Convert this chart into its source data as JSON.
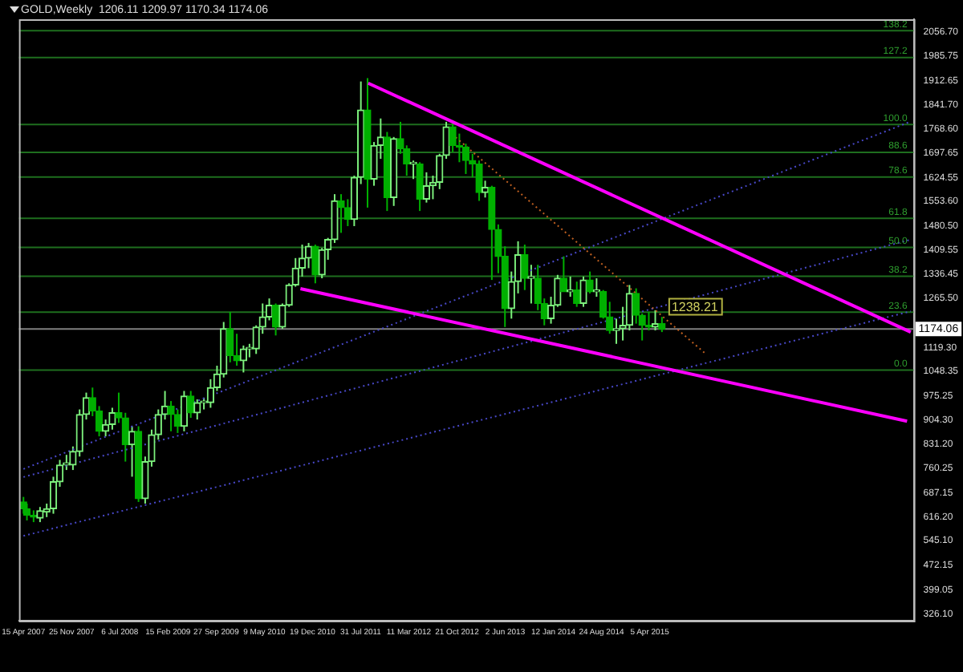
{
  "chart_data": {
    "type": "candlestick",
    "title": "GOLD,Weekly  1206.11 1209.97 1170.34 1174.06",
    "colors": [
      "#00b000",
      "#00b000",
      "#00b000",
      "#7cf07c",
      "#7cf07c",
      "#7cf07c",
      "#7cf07c",
      "#7cf07c",
      "#7cf07c",
      "#7cf07c",
      "#7cf07c",
      "#00b000",
      "#00b000",
      "#7cf07c",
      "#7cf07c",
      "#00b000",
      "#00b000",
      "#7cf07c",
      "#00b000",
      "#7cf07c",
      "#7cf07c",
      "#7cf07c",
      "#7cf07c",
      "#00b000",
      "#00b000",
      "#7cf07c",
      "#00b000",
      "#7cf07c",
      "#7cf07c",
      "#7cf07c",
      "#7cf07c",
      "#7cf07c",
      "#00b000",
      "#00b000",
      "#7cf07c",
      "#7cf07c",
      "#7cf07c",
      "#7cf07c",
      "#7cf07c",
      "#00b000",
      "#7cf07c",
      "#7cf07c",
      "#7cf07c",
      "#7cf07c",
      "#7cf07c",
      "#00b000",
      "#7cf07c",
      "#7cf07c",
      "#7cf07c",
      "#00b000",
      "#00b000",
      "#7cf07c",
      "#7cf07c",
      "#00b000",
      "#7cf07c",
      "#7cf07c",
      "#00b000",
      "#7cf07c",
      "#00b000",
      "#00b000",
      "#7cf07c",
      "#00b000",
      "#7cf07c",
      "#7cf07c",
      "#7cf07c",
      "#7cf07c",
      "#00b000",
      "#00b000",
      "#00b000",
      "#00b000",
      "#00b000",
      "#7cf07c",
      "#00b000",
      "#00b000",
      "#00b000",
      "#7cf07c",
      "#7cf07c",
      "#00b000",
      "#7cf07c",
      "#00b000",
      "#00b000",
      "#7cf07c",
      "#7cf07c",
      "#00b000",
      "#7cf07c",
      "#00b000",
      "#7cf07c",
      "#00b000",
      "#7cf07c",
      "#00b000",
      "#00b000",
      "#7cf07c",
      "#7cf07c",
      "#7cf07c",
      "#00b000",
      "#00b000",
      "#00b000",
      "#7cf07c",
      "#00b000"
    ],
    "legend": false,
    "grid": false,
    "x": [
      "2007-04-15",
      "2007-05",
      "2007-06",
      "2007-07",
      "2007-08",
      "2007-09",
      "2007-10",
      "2007-11",
      "2007-12",
      "2008-01",
      "2008-02",
      "2008-03",
      "2008-04",
      "2008-05",
      "2008-06",
      "2008-07",
      "2008-08",
      "2008-09",
      "2008-10",
      "2008-11",
      "2008-12",
      "2009-01",
      "2009-02",
      "2009-03",
      "2009-04",
      "2009-05",
      "2009-06",
      "2009-07",
      "2009-08",
      "2009-09",
      "2009-10",
      "2009-11",
      "2009-12",
      "2010-01",
      "2010-02",
      "2010-03",
      "2010-04",
      "2010-05",
      "2010-06",
      "2010-07",
      "2010-08",
      "2010-09",
      "2010-10",
      "2010-11",
      "2010-12",
      "2011-01",
      "2011-02",
      "2011-03",
      "2011-04",
      "2011-05",
      "2011-06",
      "2011-07",
      "2011-08",
      "2011-09",
      "2011-10",
      "2011-11",
      "2011-12",
      "2012-01",
      "2012-02",
      "2012-03",
      "2012-04",
      "2012-05",
      "2012-06",
      "2012-07",
      "2012-08",
      "2012-09",
      "2012-10",
      "2012-11",
      "2012-12",
      "2013-01",
      "2013-02",
      "2013-03",
      "2013-04",
      "2013-05",
      "2013-06",
      "2013-07",
      "2013-08",
      "2013-09",
      "2013-10",
      "2013-11",
      "2013-12",
      "2014-01",
      "2014-02",
      "2014-03",
      "2014-04",
      "2014-05",
      "2014-06",
      "2014-07",
      "2014-08",
      "2014-09",
      "2014-10",
      "2014-11",
      "2014-12",
      "2015-01",
      "2015-02",
      "2015-03",
      "2015-04",
      "2015-05",
      "2015-06"
    ],
    "ohlc": [
      [
        660,
        675,
        625,
        640
      ],
      [
        640,
        655,
        605,
        620
      ],
      [
        620,
        635,
        600,
        615
      ],
      [
        612,
        645,
        600,
        634
      ],
      [
        630,
        655,
        615,
        640
      ],
      [
        640,
        735,
        625,
        720
      ],
      [
        720,
        785,
        705,
        770
      ],
      [
        770,
        800,
        755,
        776
      ],
      [
        770,
        825,
        755,
        810
      ],
      [
        810,
        935,
        795,
        920
      ],
      [
        920,
        985,
        905,
        970
      ],
      [
        970,
        1000,
        915,
        930
      ],
      [
        930,
        945,
        855,
        870
      ],
      [
        870,
        905,
        855,
        890
      ],
      [
        890,
        940,
        875,
        925
      ],
      [
        925,
        985,
        895,
        910
      ],
      [
        910,
        925,
        780,
        830
      ],
      [
        830,
        885,
        735,
        870
      ],
      [
        870,
        885,
        660,
        670
      ],
      [
        670,
        795,
        655,
        780
      ],
      [
        780,
        875,
        765,
        860
      ],
      [
        860,
        935,
        845,
        920
      ],
      [
        920,
        990,
        905,
        945
      ],
      [
        945,
        960,
        870,
        920
      ],
      [
        920,
        935,
        865,
        885
      ],
      [
        885,
        990,
        870,
        975
      ],
      [
        975,
        990,
        910,
        925
      ],
      [
        925,
        965,
        905,
        955
      ],
      [
        955,
        970,
        935,
        955
      ],
      [
        955,
        1025,
        940,
        1000
      ],
      [
        1000,
        1065,
        990,
        1040
      ],
      [
        1040,
        1195,
        1030,
        1175
      ],
      [
        1175,
        1225,
        1075,
        1095
      ],
      [
        1095,
        1160,
        1065,
        1080
      ],
      [
        1080,
        1125,
        1045,
        1115
      ],
      [
        1115,
        1130,
        1090,
        1115
      ],
      [
        1115,
        1185,
        1100,
        1180
      ],
      [
        1180,
        1250,
        1160,
        1210
      ],
      [
        1210,
        1265,
        1200,
        1245
      ],
      [
        1245,
        1250,
        1155,
        1180
      ],
      [
        1180,
        1250,
        1175,
        1245
      ],
      [
        1245,
        1310,
        1240,
        1305
      ],
      [
        1305,
        1385,
        1300,
        1355
      ],
      [
        1355,
        1425,
        1330,
        1385
      ],
      [
        1385,
        1430,
        1355,
        1420
      ],
      [
        1420,
        1425,
        1310,
        1335
      ],
      [
        1335,
        1415,
        1325,
        1410
      ],
      [
        1410,
        1445,
        1380,
        1440
      ],
      [
        1440,
        1575,
        1430,
        1555
      ],
      [
        1555,
        1575,
        1460,
        1535
      ],
      [
        1535,
        1560,
        1480,
        1500
      ],
      [
        1500,
        1630,
        1480,
        1625
      ],
      [
        1625,
        1910,
        1605,
        1825
      ],
      [
        1825,
        1920,
        1535,
        1620
      ],
      [
        1620,
        1730,
        1600,
        1720
      ],
      [
        1720,
        1800,
        1680,
        1745
      ],
      [
        1745,
        1760,
        1525,
        1565
      ],
      [
        1565,
        1745,
        1540,
        1740
      ],
      [
        1740,
        1790,
        1695,
        1710
      ],
      [
        1710,
        1720,
        1630,
        1665
      ],
      [
        1665,
        1675,
        1620,
        1665
      ],
      [
        1665,
        1670,
        1525,
        1560
      ],
      [
        1560,
        1640,
        1550,
        1600
      ],
      [
        1600,
        1630,
        1560,
        1610
      ],
      [
        1610,
        1695,
        1590,
        1690
      ],
      [
        1690,
        1790,
        1680,
        1775
      ],
      [
        1775,
        1795,
        1700,
        1720
      ],
      [
        1720,
        1755,
        1670,
        1715
      ],
      [
        1715,
        1725,
        1635,
        1675
      ],
      [
        1675,
        1695,
        1625,
        1665
      ],
      [
        1665,
        1675,
        1555,
        1580
      ],
      [
        1580,
        1615,
        1565,
        1595
      ],
      [
        1595,
        1600,
        1320,
        1470
      ],
      [
        1470,
        1485,
        1340,
        1390
      ],
      [
        1390,
        1420,
        1180,
        1235
      ],
      [
        1235,
        1345,
        1205,
        1315
      ],
      [
        1315,
        1435,
        1280,
        1395
      ],
      [
        1395,
        1425,
        1290,
        1325
      ],
      [
        1325,
        1365,
        1250,
        1325
      ],
      [
        1325,
        1365,
        1230,
        1250
      ],
      [
        1250,
        1265,
        1185,
        1205
      ],
      [
        1205,
        1270,
        1190,
        1245
      ],
      [
        1245,
        1335,
        1240,
        1325
      ],
      [
        1325,
        1390,
        1285,
        1285
      ],
      [
        1285,
        1330,
        1270,
        1290
      ],
      [
        1290,
        1315,
        1240,
        1250
      ],
      [
        1250,
        1330,
        1240,
        1320
      ],
      [
        1320,
        1345,
        1280,
        1285
      ],
      [
        1285,
        1325,
        1270,
        1285
      ],
      [
        1285,
        1290,
        1205,
        1210
      ],
      [
        1210,
        1255,
        1160,
        1170
      ],
      [
        1170,
        1205,
        1130,
        1175
      ],
      [
        1175,
        1240,
        1140,
        1185
      ],
      [
        1185,
        1305,
        1170,
        1280
      ],
      [
        1280,
        1295,
        1190,
        1215
      ],
      [
        1215,
        1220,
        1140,
        1185
      ],
      [
        1185,
        1225,
        1170,
        1180
      ],
      [
        1180,
        1230,
        1170,
        1190
      ],
      [
        1190,
        1210,
        1165,
        1174.06
      ]
    ],
    "series": [
      {
        "type": "line",
        "color": "#ff00ff",
        "line_style": "solid",
        "x": [
          "2011-09-04",
          "2018-08-01"
        ],
        "values": [
          1905,
          1165
        ]
      },
      {
        "type": "line",
        "color": "#ff00ff",
        "line_style": "solid",
        "x": [
          "2010-10-24",
          "2018-07-15"
        ],
        "values": [
          1294,
          900
        ]
      },
      {
        "type": "line",
        "color": "#c06020",
        "line_style": "dotted",
        "x": [
          "2012-10-15",
          "2015-12-15"
        ],
        "values": [
          1744,
          1104
        ]
      },
      {
        "type": "line",
        "color": "#4848c8",
        "line_style": "dotted",
        "x": [
          "2007-04-15",
          "2018-08-01"
        ],
        "values": [
          758,
          1791
        ]
      },
      {
        "type": "line",
        "color": "#4848c8",
        "line_style": "dotted",
        "x": [
          "2007-04-15",
          "2018-08-01"
        ],
        "values": [
          734,
          1440
        ]
      },
      {
        "type": "line",
        "color": "#4848c8",
        "line_style": "dotted",
        "x": [
          "2007-04-15",
          "2018-08-01"
        ],
        "values": [
          559,
          1227
        ]
      }
    ],
    "xlim": [
      "2007-03-25",
      "2018-08-15"
    ],
    "xticks": [
      {
        "value": "2007-04-15",
        "label": "15 Apr 2007"
      },
      {
        "value": "2007-11-25",
        "label": "25 Nov 2007"
      },
      {
        "value": "2008-07-06",
        "label": "6 Jul 2008"
      },
      {
        "value": "2009-02-15",
        "label": "15 Feb 2009"
      },
      {
        "value": "2009-09-27",
        "label": "27 Sep 2009"
      },
      {
        "value": "2010-05-09",
        "label": "9 May 2010"
      },
      {
        "value": "2010-12-19",
        "label": "19 Dec 2010"
      },
      {
        "value": "2011-07-31",
        "label": "31 Jul 2011"
      },
      {
        "value": "2012-03-11",
        "label": "11 Mar 2012"
      },
      {
        "value": "2012-10-21",
        "label": "21 Oct 2012"
      },
      {
        "value": "2013-06-02",
        "label": "2 Jun 2013"
      },
      {
        "value": "2014-01-12",
        "label": "12 Jan 2014"
      },
      {
        "value": "2014-08-24",
        "label": "24 Aug 2014"
      },
      {
        "value": "2015-04-05",
        "label": "5 Apr 2015"
      }
    ],
    "ylim": [
      307,
      2095
    ],
    "yticks": [
      {
        "value": 2056.7,
        "label": "2056.70"
      },
      {
        "value": 1985.75,
        "label": "1985.75"
      },
      {
        "value": 1912.65,
        "label": "1912.65"
      },
      {
        "value": 1841.7,
        "label": "1841.70"
      },
      {
        "value": 1768.6,
        "label": "1768.60"
      },
      {
        "value": 1697.65,
        "label": "1697.65"
      },
      {
        "value": 1624.55,
        "label": "1624.55"
      },
      {
        "value": 1553.6,
        "label": "1553.60"
      },
      {
        "value": 1480.5,
        "label": "1480.50"
      },
      {
        "value": 1409.55,
        "label": "1409.55"
      },
      {
        "value": 1336.45,
        "label": "1336.45"
      },
      {
        "value": 1265.5,
        "label": "1265.50"
      },
      {
        "value": 1119.3,
        "label": "1119.30"
      },
      {
        "value": 1048.35,
        "label": "1048.35"
      },
      {
        "value": 975.25,
        "label": "975.25"
      },
      {
        "value": 904.3,
        "label": "904.30"
      },
      {
        "value": 831.2,
        "label": "831.20"
      },
      {
        "value": 760.25,
        "label": "760.25"
      },
      {
        "value": 687.15,
        "label": "687.15"
      },
      {
        "value": 616.2,
        "label": "616.20"
      },
      {
        "value": 545.1,
        "label": "545.10"
      },
      {
        "value": 472.15,
        "label": "472.15"
      },
      {
        "value": 399.05,
        "label": "399.05"
      },
      {
        "value": 326.1,
        "label": "326.10"
      }
    ],
    "ref_lines": [
      {
        "axis": "y",
        "value": 1052,
        "color": "#1e6e1e"
      },
      {
        "axis": "y",
        "value": 1224,
        "color": "#1e6e1e"
      },
      {
        "axis": "y",
        "value": 1331,
        "color": "#1e6e1e"
      },
      {
        "axis": "y",
        "value": 1417,
        "color": "#1e6e1e"
      },
      {
        "axis": "y",
        "value": 1503,
        "color": "#1e6e1e"
      },
      {
        "axis": "y",
        "value": 1626,
        "color": "#1e6e1e"
      },
      {
        "axis": "y",
        "value": 1699,
        "color": "#1e6e1e"
      },
      {
        "axis": "y",
        "value": 1782,
        "color": "#1e6e1e"
      },
      {
        "axis": "y",
        "value": 1981,
        "color": "#1e6e1e"
      },
      {
        "axis": "y",
        "value": 2061,
        "color": "#1e6e1e"
      },
      {
        "axis": "y",
        "value": 1174.06,
        "label": "1174.06",
        "color": "#808080"
      }
    ],
    "annotations": [
      {
        "text": "1238.21",
        "x": "2015-07-01",
        "y": 1238.21
      },
      {
        "text": "0.0",
        "y": 1052
      },
      {
        "text": "23.6",
        "y": 1224
      },
      {
        "text": "38.2",
        "y": 1331
      },
      {
        "text": "50.0",
        "y": 1417
      },
      {
        "text": "61.8",
        "y": 1503
      },
      {
        "text": "78.6",
        "y": 1626
      },
      {
        "text": "88.6",
        "y": 1699
      },
      {
        "text": "100.0",
        "y": 1782
      },
      {
        "text": "127.2",
        "y": 1981
      },
      {
        "text": "138.2",
        "y": 2061
      }
    ]
  }
}
